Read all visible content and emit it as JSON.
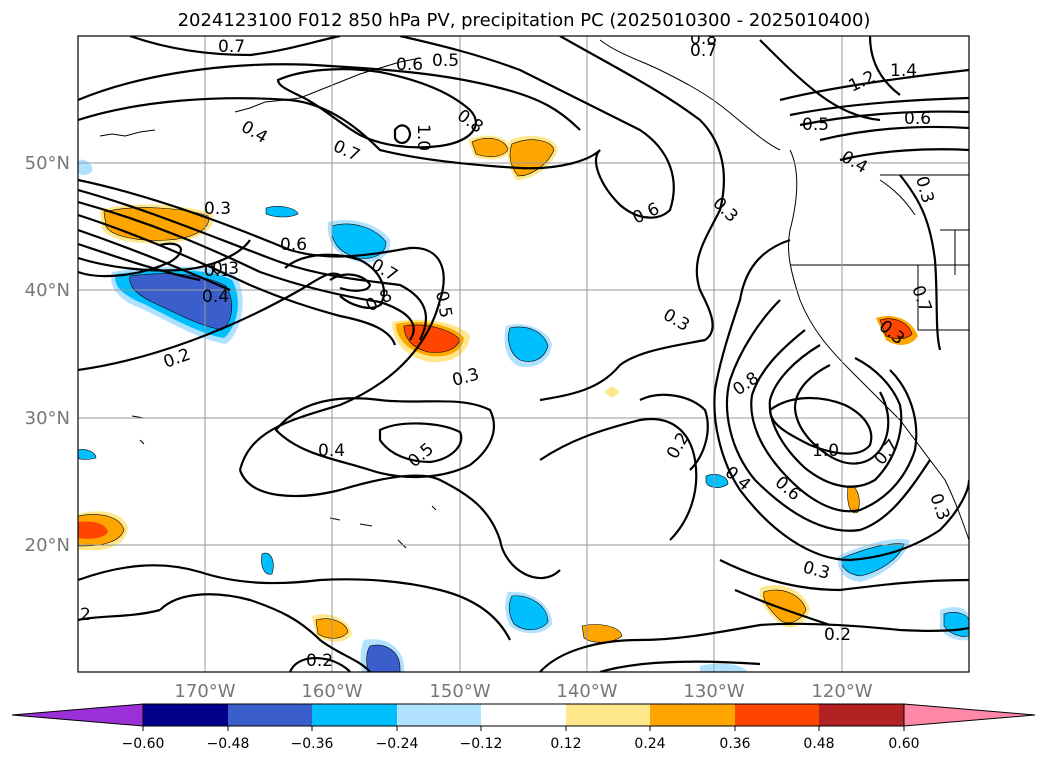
{
  "title": "2024123100 F012 850 hPa PV, precipitation PC (2025010300 - 2025010400)",
  "map": {
    "lon_range": [
      -180,
      -110
    ],
    "lat_range": [
      10,
      60
    ],
    "lon_ticks": [
      "170°W",
      "160°W",
      "150°W",
      "140°W",
      "130°W",
      "120°W"
    ],
    "lat_ticks": [
      "50°N",
      "40°N",
      "30°N",
      "20°N"
    ],
    "contour_labels": [
      "0.7",
      "0.5",
      "0.8",
      "0.7",
      "0.6",
      "0.4",
      "0.8",
      "1.0",
      "0.7",
      "1.2",
      "1.4",
      "0.6",
      "0.5",
      "0.4",
      "0.3",
      "0.3",
      "0.6",
      "0.3",
      "0.6",
      "0.7",
      "0.4",
      "0.1",
      "0.7",
      "0.8",
      "0.5",
      "0.2",
      "0.3",
      "0.3",
      "0.3",
      "0.3",
      "0.8",
      "1.0",
      "0.2",
      "0.4",
      "0.6",
      "0.7",
      "0.3",
      "0.4",
      "0.5",
      "0.3",
      "0.2",
      "0.2",
      "2"
    ]
  },
  "colorbar": {
    "ticks": [
      "−0.60",
      "−0.48",
      "−0.36",
      "−0.24",
      "−0.12",
      "0.12",
      "0.24",
      "0.36",
      "0.48",
      "0.60"
    ],
    "colors": [
      "#9b30d9",
      "#00008b",
      "#3a5fcd",
      "#00bfff",
      "#b0e2ff",
      "#ffffff",
      "#ffe88c",
      "#ffa500",
      "#ff4500",
      "#b22222",
      "#ff88a8"
    ]
  },
  "chart_data": {
    "type": "contour_map",
    "contour_field": "850 hPa PV",
    "shaded_field": "precipitation PC",
    "levels": [
      -0.6,
      -0.48,
      -0.36,
      -0.24,
      -0.12,
      0.12,
      0.24,
      0.36,
      0.48,
      0.6
    ]
  }
}
